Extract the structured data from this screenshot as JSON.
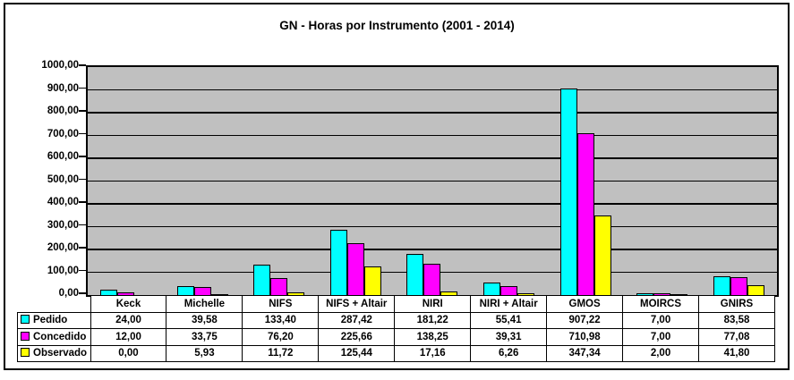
{
  "chart_data": {
    "type": "bar",
    "title": "GN - Horas por Instrumento (2001 - 2014)",
    "categories": [
      "Keck",
      "Michelle",
      "NIFS",
      "NIFS + Altair",
      "NIRI",
      "NIRI + Altair",
      "GMOS",
      "MOIRCS",
      "GNIRS"
    ],
    "series": [
      {
        "name": "Pedido",
        "color": "#00FFFF",
        "values": [
          24.0,
          39.58,
          133.4,
          287.42,
          181.22,
          55.41,
          907.22,
          7.0,
          83.58
        ]
      },
      {
        "name": "Concedido",
        "color": "#FF00FF",
        "values": [
          12.0,
          33.75,
          76.2,
          225.66,
          138.25,
          39.31,
          710.98,
          7.0,
          77.08
        ]
      },
      {
        "name": "Observado",
        "color": "#FFFF00",
        "values": [
          0.0,
          5.93,
          11.72,
          125.44,
          17.16,
          6.26,
          347.34,
          2.0,
          41.8
        ]
      }
    ],
    "ylim": [
      0,
      1000
    ],
    "y_tick_step": 100,
    "y_tick_labels": [
      "0,00",
      "100,00",
      "200,00",
      "300,00",
      "400,00",
      "500,00",
      "600,00",
      "700,00",
      "800,00",
      "900,00",
      "1000,00"
    ],
    "grid": true,
    "plot_background": "#C0C0C0",
    "gridline_color": "#000000",
    "decimal_separator": ",",
    "legend_position": "table-left",
    "xlabel": "",
    "ylabel": ""
  },
  "table": {
    "rows": [
      {
        "label": "Pedido",
        "cells": [
          "24,00",
          "39,58",
          "133,40",
          "287,42",
          "181,22",
          "55,41",
          "907,22",
          "7,00",
          "83,58"
        ]
      },
      {
        "label": "Concedido",
        "cells": [
          "12,00",
          "33,75",
          "76,20",
          "225,66",
          "138,25",
          "39,31",
          "710,98",
          "7,00",
          "77,08"
        ]
      },
      {
        "label": "Observado",
        "cells": [
          "0,00",
          "5,93",
          "11,72",
          "125,44",
          "17,16",
          "6,26",
          "347,34",
          "2,00",
          "41,80"
        ]
      }
    ]
  }
}
